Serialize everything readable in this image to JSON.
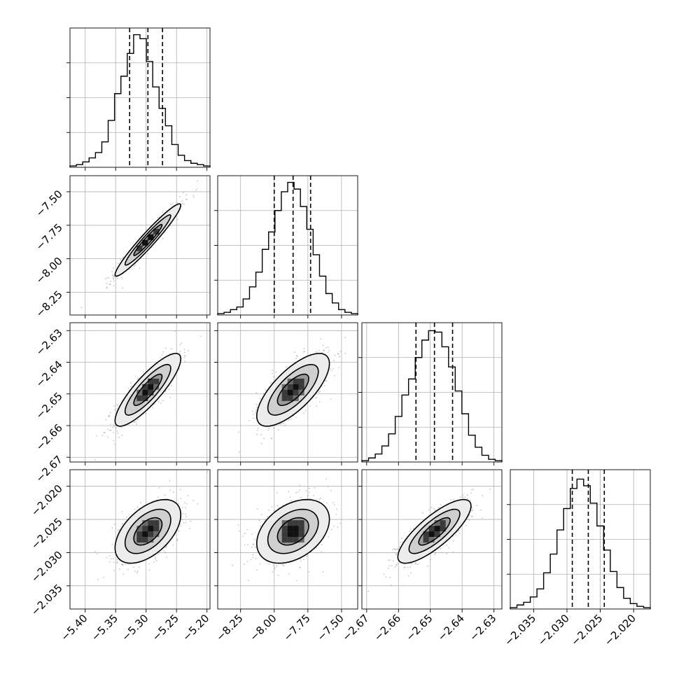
{
  "chart_data": {
    "type": "corner",
    "parameters": [
      {
        "ticks": [
          "-5.40",
          "-5.35",
          "-5.30",
          "-5.25",
          "-5.20"
        ],
        "range": [
          -5.425,
          -5.195
        ],
        "median": -5.297,
        "q16": -5.327,
        "q84": -5.273,
        "hist": [
          0.01,
          0.02,
          0.04,
          0.07,
          0.11,
          0.19,
          0.35,
          0.55,
          0.68,
          0.85,
          0.99,
          0.96,
          0.79,
          0.6,
          0.44,
          0.31,
          0.17,
          0.09,
          0.05,
          0.03,
          0.02,
          0.01
        ],
        "hist_ylim": [
          0,
          1.04
        ]
      },
      {
        "ticks": [
          "-8.25",
          "-8.00",
          "-7.75",
          "-7.50"
        ],
        "range": [
          -8.42,
          -7.38
        ],
        "median": -7.86,
        "q16": -8.0,
        "q84": -7.73,
        "hist": [
          0.01,
          0.02,
          0.04,
          0.06,
          0.12,
          0.21,
          0.32,
          0.49,
          0.62,
          0.78,
          0.92,
          0.99,
          0.94,
          0.81,
          0.64,
          0.45,
          0.29,
          0.16,
          0.09,
          0.04,
          0.02,
          0.01
        ],
        "hist_ylim": [
          0,
          1.04
        ]
      },
      {
        "ticks": [
          "-2.67",
          "-2.66",
          "-2.65",
          "-2.64",
          "-2.63"
        ],
        "range": [
          -2.6715,
          -2.6275
        ],
        "median": -2.6487,
        "q16": -2.6545,
        "q84": -2.643,
        "hist": [
          0.01,
          0.03,
          0.06,
          0.12,
          0.21,
          0.34,
          0.5,
          0.62,
          0.78,
          0.91,
          0.98,
          0.97,
          0.86,
          0.71,
          0.53,
          0.36,
          0.2,
          0.11,
          0.05,
          0.02,
          0.01
        ],
        "hist_ylim": [
          0,
          1.04
        ]
      },
      {
        "ticks": [
          "-2.035",
          "-2.030",
          "-2.025",
          "-2.020"
        ],
        "range": [
          -2.0385,
          -2.0175
        ],
        "median": -2.0268,
        "q16": -2.0292,
        "q84": -2.0244,
        "hist": [
          0.01,
          0.03,
          0.05,
          0.09,
          0.15,
          0.27,
          0.41,
          0.59,
          0.75,
          0.9,
          0.97,
          0.92,
          0.79,
          0.62,
          0.44,
          0.28,
          0.16,
          0.08,
          0.04,
          0.02,
          0.01
        ],
        "hist_ylim": [
          0,
          1.04
        ]
      }
    ],
    "pairs": [
      {
        "x": 0,
        "y": 1,
        "rho": 0.96
      },
      {
        "x": 0,
        "y": 2,
        "rho": 0.85
      },
      {
        "x": 1,
        "y": 2,
        "rho": 0.72
      },
      {
        "x": 0,
        "y": 3,
        "rho": 0.52
      },
      {
        "x": 1,
        "y": 3,
        "rho": 0.38
      },
      {
        "x": 2,
        "y": 3,
        "rho": 0.8
      }
    ],
    "contour_levels": [
      0.39,
      0.86,
      1.39,
      2.0
    ],
    "style": {
      "line_color": "#000000",
      "scatter_color": "#7f7f7f",
      "grid_color": "#b0b0b0",
      "quantile_line": "dashed"
    },
    "grid": true,
    "title": "",
    "legend": "none"
  }
}
